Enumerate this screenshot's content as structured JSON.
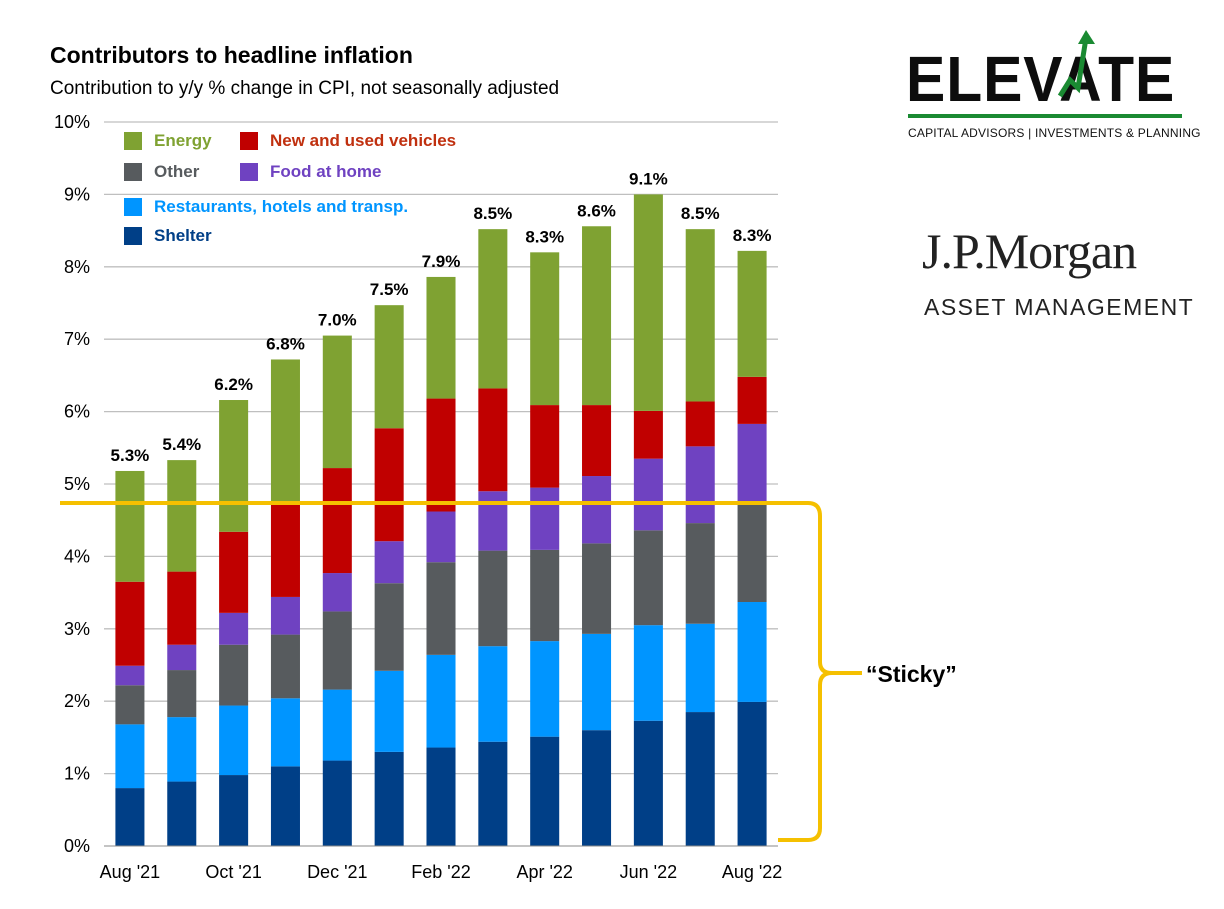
{
  "title": "Contributors to headline inflation",
  "subtitle": "Contribution to y/y % change in CPI, not seasonally adjusted",
  "annotation": {
    "label": "“Sticky”",
    "color": "#f5c000"
  },
  "logos": {
    "elevate": {
      "word": "ELEVATE",
      "tagline": "CAPITAL ADVISORS | INVESTMENTS & PLANNING"
    },
    "jpmorgan": {
      "name": "J.P.Morgan",
      "tagline": "ASSET MANAGEMENT"
    }
  },
  "chart_data": {
    "type": "bar",
    "stacked": true,
    "ylim": [
      0,
      10
    ],
    "yticks": [
      "0%",
      "1%",
      "2%",
      "3%",
      "4%",
      "5%",
      "6%",
      "7%",
      "8%",
      "9%",
      "10%"
    ],
    "xtick_labels": [
      "Aug '21",
      "Oct '21",
      "Dec '21",
      "Feb '22",
      "Apr '22",
      "Jun '22",
      "Aug '22"
    ],
    "grid": true,
    "legend_position": "top-left",
    "categories": [
      "Aug '21",
      "Sep '21",
      "Oct '21",
      "Nov '21",
      "Dec '21",
      "Jan '22",
      "Feb '22",
      "Mar '22",
      "Apr '22",
      "May '22",
      "Jun '22",
      "Jul '22",
      "Aug '22"
    ],
    "totals": [
      "5.3%",
      "5.4%",
      "6.2%",
      "6.8%",
      "7.0%",
      "7.5%",
      "7.9%",
      "8.5%",
      "8.3%",
      "8.6%",
      "9.1%",
      "8.5%",
      "8.3%"
    ],
    "series": [
      {
        "name": "Shelter",
        "color": "#003f87",
        "values": [
          0.8,
          0.89,
          0.98,
          1.1,
          1.18,
          1.3,
          1.36,
          1.44,
          1.51,
          1.6,
          1.73,
          1.85,
          1.99
        ]
      },
      {
        "name": "Restaurants, hotels and transp.",
        "color": "#0095ff",
        "values": [
          0.88,
          0.89,
          0.96,
          0.94,
          0.98,
          1.12,
          1.28,
          1.32,
          1.32,
          1.33,
          1.32,
          1.22,
          1.38
        ]
      },
      {
        "name": "Other",
        "color": "#575b5e",
        "values": [
          0.54,
          0.65,
          0.84,
          0.88,
          1.08,
          1.21,
          1.28,
          1.32,
          1.26,
          1.25,
          1.31,
          1.39,
          1.36
        ]
      },
      {
        "name": "Food at home",
        "color": "#6f42c1",
        "values": [
          0.27,
          0.35,
          0.44,
          0.52,
          0.53,
          0.58,
          0.7,
          0.82,
          0.86,
          0.93,
          0.99,
          1.06,
          1.1
        ]
      },
      {
        "name": "New and used vehicles",
        "color": "#c00000",
        "values": [
          1.16,
          1.01,
          1.12,
          1.3,
          1.45,
          1.56,
          1.56,
          1.42,
          1.14,
          0.98,
          0.66,
          0.62,
          0.65
        ]
      },
      {
        "name": "Energy",
        "color": "#7fa232",
        "values": [
          1.53,
          1.54,
          1.82,
          1.98,
          1.83,
          1.7,
          1.68,
          2.2,
          2.11,
          2.47,
          2.99,
          2.38,
          1.74
        ]
      }
    ]
  }
}
